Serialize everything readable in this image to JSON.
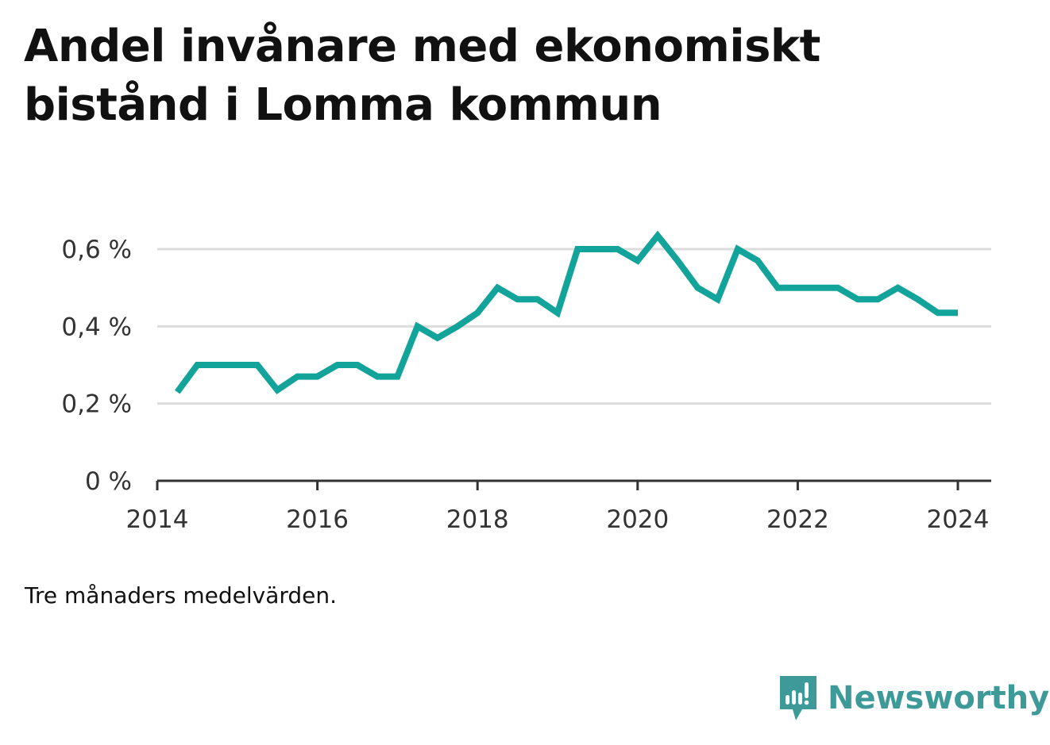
{
  "title": "Andel invånare med ekonomiskt bistånd i Lomma kommun",
  "note": "Tre månaders medelvärden.",
  "brand": {
    "name": "Newsworthy",
    "icon": "newsworthy-logo-icon",
    "color": "#3d9a98"
  },
  "colors": {
    "line": "#12a39a",
    "grid": "#dcdcdc",
    "axis": "#333333"
  },
  "chart_data": {
    "type": "line",
    "title": "Andel invånare med ekonomiskt bistånd i Lomma kommun",
    "xlabel": "",
    "ylabel": "",
    "xlim": [
      "2014-01",
      "2024-06"
    ],
    "ylim": [
      0,
      0.6
    ],
    "x_ticks": [
      "2014",
      "2016",
      "2018",
      "2020",
      "2022",
      "2024"
    ],
    "y_ticks": [
      "0 %",
      "0,2 %",
      "0,4 %",
      "0,6 %"
    ],
    "grid": true,
    "legend": "none",
    "series": [
      {
        "x": [
          "2014-04",
          "2014-07",
          "2014-10",
          "2015-01",
          "2015-04",
          "2015-07",
          "2015-10",
          "2016-01",
          "2016-04",
          "2016-07",
          "2016-10",
          "2017-01",
          "2017-04",
          "2017-07",
          "2017-10",
          "2018-01",
          "2018-04",
          "2018-07",
          "2018-10",
          "2019-01",
          "2019-04",
          "2019-07",
          "2019-10",
          "2020-01",
          "2020-04",
          "2020-07",
          "2020-10",
          "2021-01",
          "2021-04",
          "2021-07",
          "2021-10",
          "2022-01",
          "2022-04",
          "2022-07",
          "2022-10",
          "2023-01",
          "2023-04",
          "2023-07",
          "2023-10",
          "2024-01"
        ],
        "values": [
          0.23,
          0.3,
          0.3,
          0.3,
          0.3,
          0.235,
          0.27,
          0.27,
          0.3,
          0.3,
          0.27,
          0.27,
          0.4,
          0.37,
          0.4,
          0.435,
          0.5,
          0.47,
          0.47,
          0.435,
          0.6,
          0.6,
          0.6,
          0.57,
          0.635,
          0.57,
          0.5,
          0.47,
          0.6,
          0.57,
          0.5,
          0.5,
          0.5,
          0.5,
          0.47,
          0.47,
          0.5,
          0.47,
          0.435,
          0.435
        ]
      }
    ]
  }
}
